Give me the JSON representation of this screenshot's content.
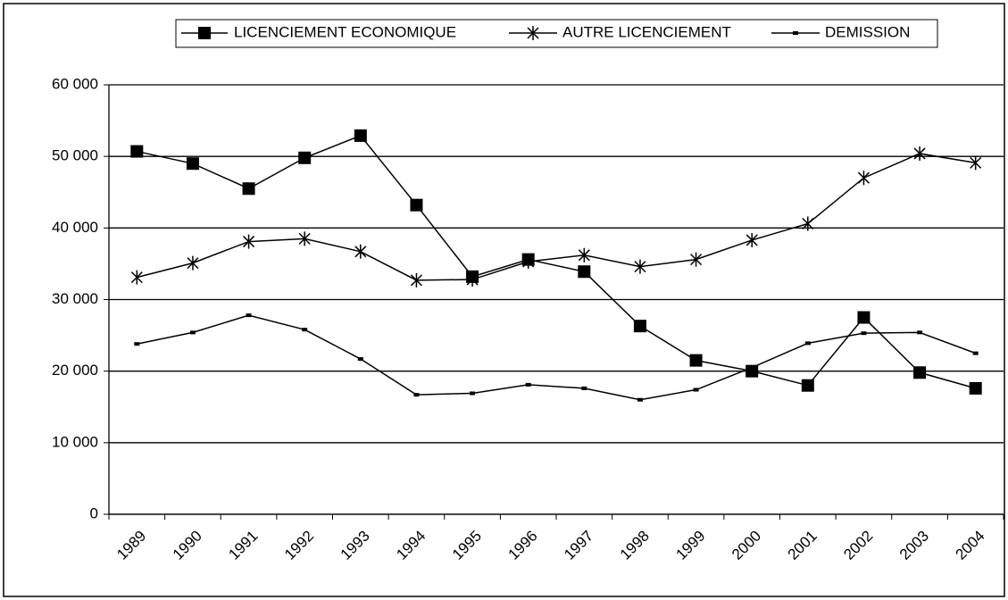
{
  "chart_data": {
    "type": "line",
    "categories": [
      "1989",
      "1990",
      "1991",
      "1992",
      "1993",
      "1994",
      "1995",
      "1996",
      "1997",
      "1998",
      "1999",
      "2000",
      "2001",
      "2002",
      "2003",
      "2004"
    ],
    "series": [
      {
        "name": "LICENCIEMENT ECONOMIQUE",
        "color": "#000000",
        "marker": "square",
        "values": [
          50700,
          49000,
          45500,
          49800,
          52900,
          43200,
          33200,
          35600,
          33900,
          26300,
          21500,
          20000,
          18000,
          27500,
          19800,
          17600
        ]
      },
      {
        "name": "AUTRE LICENCIEMENT",
        "color": "#000000",
        "marker": "asterisk",
        "values": [
          33100,
          35100,
          38100,
          38500,
          36700,
          32700,
          32800,
          35300,
          36200,
          34600,
          35600,
          38300,
          40600,
          47000,
          50400,
          49100
        ]
      },
      {
        "name": "DEMISSION",
        "color": "#000000",
        "marker": "dash",
        "values": [
          23800,
          25400,
          27800,
          25800,
          21700,
          16700,
          16900,
          18100,
          17600,
          16000,
          17400,
          20500,
          23900,
          25300,
          25400,
          22500
        ]
      }
    ],
    "ylim": [
      0,
      60000
    ],
    "yticks": [
      0,
      {
        "value": 10000,
        "label": "10 000"
      },
      {
        "value": 20000,
        "label": "20 000"
      },
      {
        "value": 30000,
        "label": "30 000"
      },
      {
        "value": 40000,
        "label": "40 000"
      },
      {
        "value": 50000,
        "label": "50 000"
      },
      {
        "value": 60000,
        "label": "60 000"
      }
    ],
    "grid": true,
    "legend": "top"
  }
}
